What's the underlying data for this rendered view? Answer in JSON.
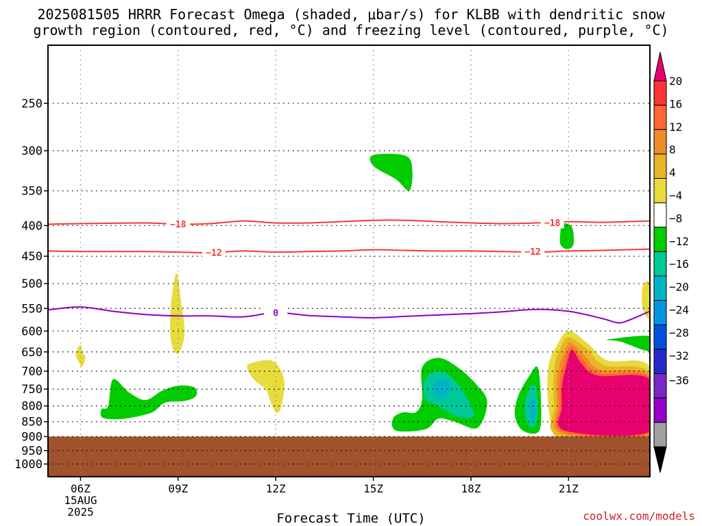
{
  "title": {
    "line1": "2025081505 HRRR Forecast Omega (shaded, μbar/s) for KLBB with dendritic snow",
    "line2": "growth region (contoured, red, °C) and freezing level (contoured, purple, °C)"
  },
  "xlabel": "Forecast Time (UTC)",
  "credit": "coolwx.com/models",
  "chart_data": {
    "type": "contour",
    "title": "2025081505 HRRR Forecast Omega (shaded, μbar/s) for KLBB with dendritic snow growth region (contoured, red, °C) and freezing level (contoured, purple, °C)",
    "xlabel": "Forecast Time (UTC)",
    "x_range_hours": [
      5,
      23.5
    ],
    "y_scale": "log-pressure",
    "y_range_hPa": [
      200,
      1050
    ],
    "y_ticks": [
      250,
      300,
      350,
      400,
      450,
      500,
      550,
      600,
      650,
      700,
      750,
      800,
      850,
      900,
      950,
      1000
    ],
    "x_ticks": [
      {
        "hour": 6,
        "label": "06Z",
        "sub1": "15AUG",
        "sub2": "2025"
      },
      {
        "hour": 9,
        "label": "09Z"
      },
      {
        "hour": 12,
        "label": "12Z"
      },
      {
        "hour": 15,
        "label": "15Z"
      },
      {
        "hour": 18,
        "label": "18Z"
      },
      {
        "hour": 21,
        "label": "21Z"
      }
    ],
    "grid": true,
    "ground_level_hPa": 900,
    "ground_color": "#a0522d",
    "colorbar": {
      "labels": [
        "20",
        "16",
        "12",
        "8",
        "4",
        "−4",
        "−8",
        "−12",
        "−16",
        "−20",
        "−24",
        "−28",
        "−32",
        "−36"
      ],
      "colors": [
        "#e8006e",
        "#ff3333",
        "#ff6633",
        "#f08c28",
        "#e8b428",
        "#e6dc3c",
        "#ffffff",
        "#00cc00",
        "#00c896",
        "#00b4c8",
        "#0096e6",
        "#0050dc",
        "#2828c8",
        "#7828c8",
        "#9600c8",
        "#a0a0a0",
        "#000000"
      ]
    },
    "contours": [
      {
        "name": "dgz_-18",
        "label": "−18",
        "color": "#ff3333",
        "points": [
          [
            5,
            398
          ],
          [
            6,
            397
          ],
          [
            8,
            396
          ],
          [
            9,
            398
          ],
          [
            10,
            397
          ],
          [
            11,
            393
          ],
          [
            12,
            396
          ],
          [
            13,
            396
          ],
          [
            14,
            394
          ],
          [
            15,
            392
          ],
          [
            16,
            392
          ],
          [
            17,
            394
          ],
          [
            18,
            396
          ],
          [
            19,
            397
          ],
          [
            20,
            396
          ],
          [
            21,
            394
          ],
          [
            22,
            395
          ],
          [
            23.5,
            393
          ]
        ],
        "label_positions": [
          [
            9,
            398
          ],
          [
            20.5,
            396
          ]
        ]
      },
      {
        "name": "dgz_-12",
        "label": "−12",
        "color": "#ff3333",
        "points": [
          [
            5,
            441
          ],
          [
            6,
            442
          ],
          [
            8,
            442
          ],
          [
            9,
            443
          ],
          [
            10,
            444
          ],
          [
            11,
            441
          ],
          [
            12,
            443
          ],
          [
            13,
            442
          ],
          [
            14,
            441
          ],
          [
            15,
            439
          ],
          [
            16,
            440
          ],
          [
            17,
            441
          ],
          [
            18,
            441
          ],
          [
            19,
            442
          ],
          [
            20,
            443
          ],
          [
            21,
            441
          ],
          [
            22,
            440
          ],
          [
            23.5,
            438
          ]
        ],
        "label_positions": [
          [
            10.1,
            444
          ],
          [
            19.9,
            442
          ]
        ]
      },
      {
        "name": "freezing_level",
        "label": "0",
        "color": "#8c00c8",
        "points": [
          [
            5,
            553
          ],
          [
            6,
            547
          ],
          [
            7,
            556
          ],
          [
            8,
            563
          ],
          [
            9,
            566
          ],
          [
            10,
            566
          ],
          [
            11,
            568
          ],
          [
            12,
            559
          ],
          [
            13,
            565
          ],
          [
            14,
            568
          ],
          [
            15,
            570
          ],
          [
            16,
            567
          ],
          [
            17,
            564
          ],
          [
            18,
            561
          ],
          [
            19,
            557
          ],
          [
            20,
            552
          ],
          [
            21,
            556
          ],
          [
            22,
            571
          ],
          [
            22.5,
            581
          ],
          [
            22.8,
            577
          ],
          [
            23.5,
            556
          ]
        ],
        "label_positions": [
          [
            12,
            560
          ]
        ]
      }
    ],
    "omega_regions": [
      {
        "value_band": "4 to 8",
        "color": "#e6dc3c",
        "points": [
          [
            6,
            632
          ],
          [
            6.05,
            648
          ],
          [
            6.15,
            664
          ],
          [
            6.05,
            688
          ],
          [
            5.95,
            676
          ],
          [
            5.85,
            654
          ]
        ]
      },
      {
        "value_band": "4 to 8",
        "color": "#e6dc3c",
        "points": [
          [
            8.95,
            480
          ],
          [
            9.1,
            540
          ],
          [
            9.2,
            600
          ],
          [
            9.1,
            640
          ],
          [
            8.95,
            655
          ],
          [
            8.8,
            630
          ],
          [
            8.75,
            580
          ],
          [
            8.8,
            530
          ]
        ]
      },
      {
        "value_band": "4 to 8",
        "color": "#e6dc3c",
        "points": [
          [
            11.2,
            680
          ],
          [
            11.9,
            673
          ],
          [
            12.25,
            720
          ],
          [
            12.2,
            790
          ],
          [
            12.05,
            822
          ],
          [
            11.85,
            790
          ],
          [
            11.7,
            752
          ],
          [
            11.35,
            725
          ],
          [
            11.15,
            697
          ]
        ]
      },
      {
        "value_band": "4 to 8",
        "color": "#e6dc3c",
        "points": [
          [
            23.3,
            502
          ],
          [
            23.5,
            500
          ],
          [
            23.5,
            570
          ],
          [
            23.3,
            555
          ],
          [
            23.25,
            525
          ]
        ]
      },
      {
        "value_band": "-8 to -4",
        "color": "#00cc00",
        "points": [
          [
            15,
            305
          ],
          [
            16,
            306
          ],
          [
            16.2,
            325
          ],
          [
            16.1,
            350
          ],
          [
            15.7,
            335
          ],
          [
            15,
            318
          ]
        ]
      },
      {
        "value_band": "-8 to -4",
        "color": "#00cc00",
        "points": [
          [
            20.8,
            397
          ],
          [
            21.1,
            402
          ],
          [
            21.15,
            430
          ],
          [
            20.95,
            438
          ],
          [
            20.75,
            430
          ],
          [
            20.75,
            410
          ]
        ]
      },
      {
        "value_band": "-8 to -4",
        "color": "#00cc00",
        "points": [
          [
            22.2,
            620
          ],
          [
            23.5,
            612
          ],
          [
            23.5,
            648
          ],
          [
            22.6,
            625
          ]
        ]
      },
      {
        "value_band": "-8 to -4",
        "color": "#00cc00",
        "points": [
          [
            7,
            722
          ],
          [
            7.5,
            760
          ],
          [
            8,
            782
          ],
          [
            8.5,
            755
          ],
          [
            9,
            740
          ],
          [
            9.5,
            745
          ],
          [
            9.55,
            770
          ],
          [
            9.2,
            785
          ],
          [
            8.6,
            790
          ],
          [
            8.2,
            820
          ],
          [
            7.5,
            838
          ],
          [
            7,
            842
          ],
          [
            6.65,
            835
          ],
          [
            6.65,
            810
          ],
          [
            6.85,
            800
          ]
        ]
      },
      {
        "value_band": "-8 to -4",
        "color": "#00cc00",
        "points": [
          [
            16.5,
            690
          ],
          [
            17,
            665
          ],
          [
            17.6,
            690
          ],
          [
            18.2,
            740
          ],
          [
            18.5,
            790
          ],
          [
            18.2,
            870
          ],
          [
            17.5,
            850
          ],
          [
            17,
            840
          ],
          [
            16.6,
            875
          ],
          [
            15.7,
            880
          ],
          [
            15.6,
            840
          ],
          [
            15.9,
            820
          ],
          [
            16.3,
            820
          ],
          [
            16.5,
            780
          ]
        ]
      },
      {
        "value_band": "-12 to -8",
        "color": "#00c896",
        "points": [
          [
            16.6,
            720
          ],
          [
            17.1,
            700
          ],
          [
            17.6,
            735
          ],
          [
            17.9,
            780
          ],
          [
            18.1,
            830
          ],
          [
            17.6,
            835
          ],
          [
            17,
            800
          ],
          [
            16.6,
            780
          ]
        ]
      },
      {
        "value_band": "-16 to -12",
        "color": "#00b4c8",
        "points": [
          [
            16.9,
            728
          ],
          [
            17.3,
            725
          ],
          [
            17.35,
            760
          ],
          [
            17.1,
            780
          ],
          [
            16.85,
            760
          ]
        ]
      },
      {
        "value_band": "-8 to -4",
        "color": "#00cc00",
        "points": [
          [
            19.8,
            712
          ],
          [
            20.05,
            690
          ],
          [
            20.15,
            780
          ],
          [
            20.1,
            880
          ],
          [
            19.6,
            880
          ],
          [
            19.35,
            830
          ],
          [
            19.45,
            770
          ]
        ]
      },
      {
        "value_band": "-12 to -8",
        "color": "#00c896",
        "points": [
          [
            19.8,
            745
          ],
          [
            20.0,
            745
          ],
          [
            20.05,
            820
          ],
          [
            19.95,
            865
          ],
          [
            19.75,
            860
          ],
          [
            19.65,
            800
          ]
        ]
      },
      {
        "value_band": "-16 to -12",
        "color": "#00b4c8",
        "points": [
          [
            19.85,
            780
          ],
          [
            19.98,
            790
          ],
          [
            19.97,
            840
          ],
          [
            19.85,
            845
          ],
          [
            19.8,
            810
          ]
        ]
      },
      {
        "value_band": "4 to 8",
        "color": "#e6dc3c",
        "points": [
          [
            20.6,
            640
          ],
          [
            21,
            600
          ],
          [
            21.6,
            630
          ],
          [
            22.2,
            672
          ],
          [
            23.5,
            690
          ],
          [
            23.5,
            912
          ],
          [
            22,
            905
          ],
          [
            20.8,
            910
          ],
          [
            20.5,
            880
          ],
          [
            20.35,
            760
          ],
          [
            20.4,
            680
          ]
        ]
      },
      {
        "value_band": "8 to 12",
        "color": "#e8b428",
        "points": [
          [
            20.7,
            650
          ],
          [
            21,
            615
          ],
          [
            21.6,
            645
          ],
          [
            22.1,
            685
          ],
          [
            23.5,
            705
          ],
          [
            23.5,
            900
          ],
          [
            20.7,
            898
          ],
          [
            20.55,
            800
          ],
          [
            20.55,
            700
          ]
        ]
      },
      {
        "value_band": "12 to 16",
        "color": "#f08c28",
        "points": [
          [
            20.8,
            665
          ],
          [
            21.05,
            628
          ],
          [
            21.5,
            660
          ],
          [
            22,
            697
          ],
          [
            23.5,
            712
          ],
          [
            23.5,
            893
          ],
          [
            20.8,
            890
          ],
          [
            20.65,
            800
          ],
          [
            20.65,
            715
          ]
        ]
      },
      {
        "value_band": "16 to 20",
        "color": "#ff6633",
        "points": [
          [
            20.85,
            680
          ],
          [
            21.08,
            638
          ],
          [
            21.45,
            670
          ],
          [
            21.95,
            705
          ],
          [
            23.5,
            718
          ],
          [
            23.5,
            888
          ],
          [
            20.85,
            885
          ],
          [
            20.72,
            800
          ],
          [
            20.72,
            730
          ]
        ]
      },
      {
        "value_band": ">20",
        "color": "#e8006e",
        "points": [
          [
            20.92,
            690
          ],
          [
            21.1,
            645
          ],
          [
            21.4,
            680
          ],
          [
            21.9,
            712
          ],
          [
            23.5,
            723
          ],
          [
            23.5,
            882
          ],
          [
            20.9,
            880
          ],
          [
            20.8,
            800
          ],
          [
            20.8,
            740
          ]
        ]
      }
    ]
  }
}
